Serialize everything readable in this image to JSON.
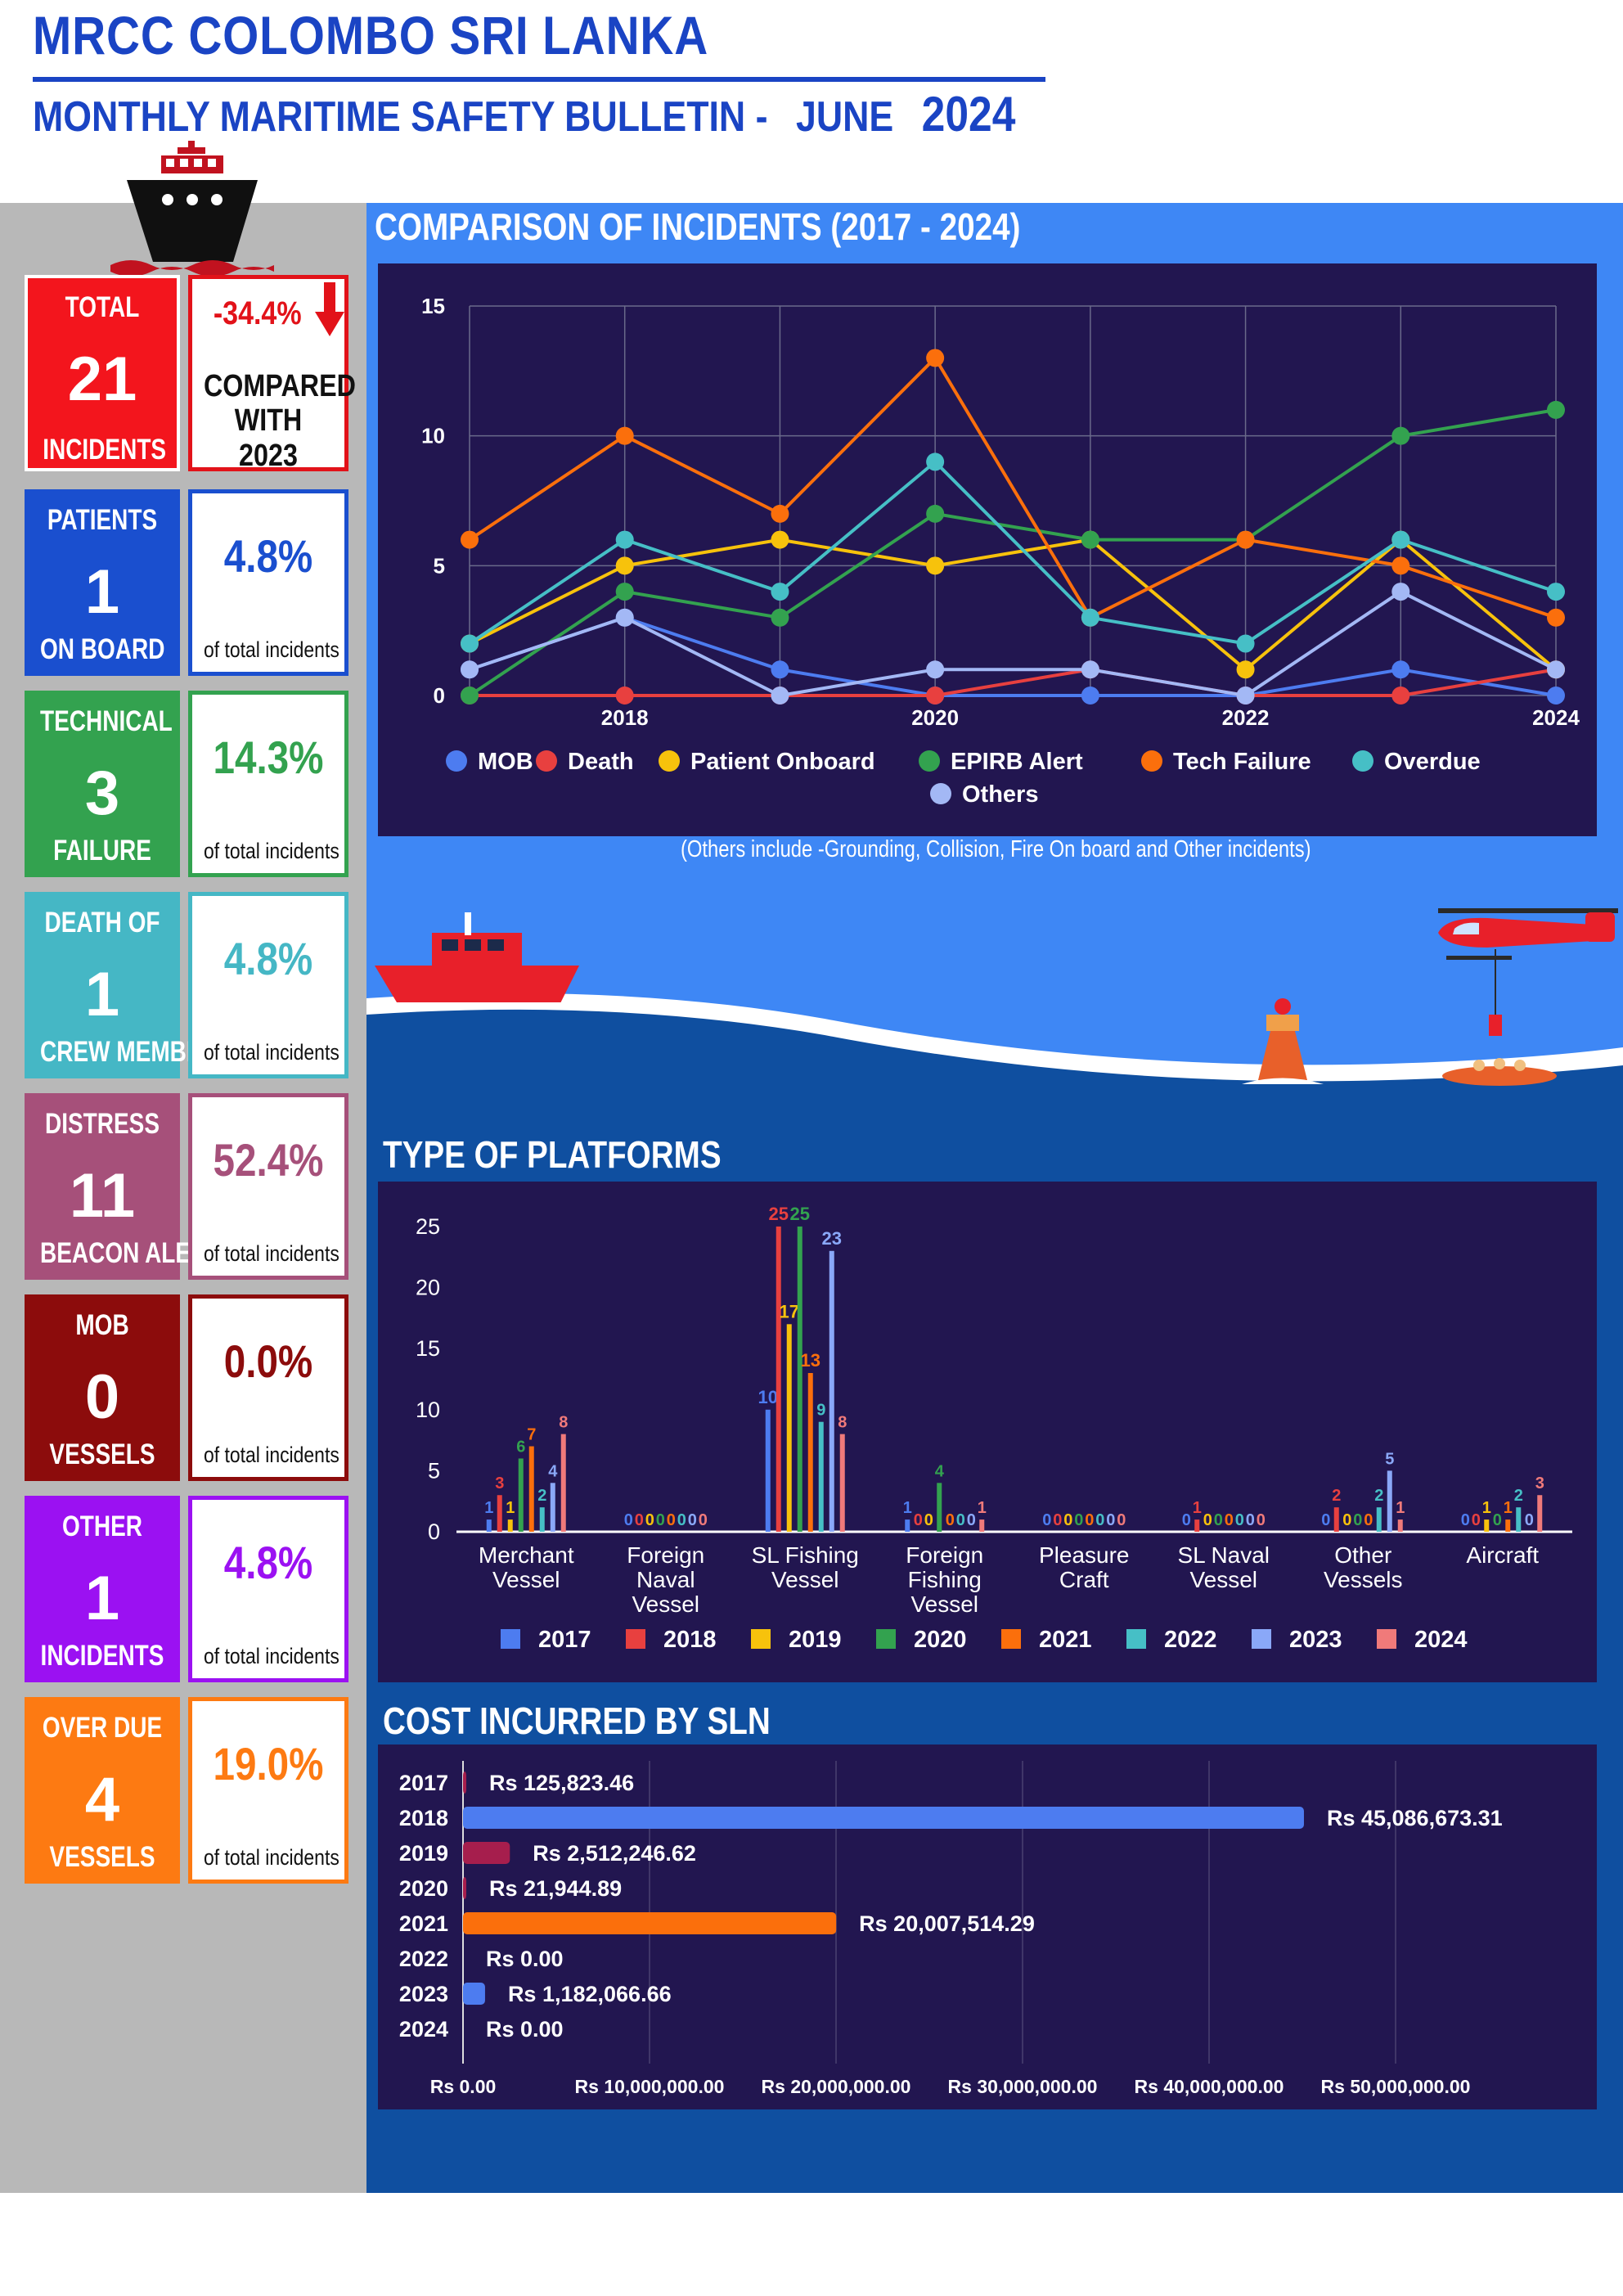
{
  "header": {
    "title": "MRCC COLOMBO SRI LANKA",
    "subtitle": "MONTHLY MARITIME SAFETY BULLETIN -",
    "month": "JUNE",
    "year": "2024"
  },
  "summary_cards": [
    {
      "top": "PATIENTS",
      "num": "1",
      "bottom": "ON BOARD",
      "pct": "4.8%",
      "pct_label": "of total incidents",
      "color": "#1a4fcf"
    },
    {
      "top": "TECHNICAL",
      "num": "3",
      "bottom": "FAILURE",
      "pct": "14.3%",
      "pct_label": "of total incidents",
      "color": "#33a24f"
    },
    {
      "top": "DEATH OF",
      "num": "1",
      "bottom": "CREW MEMBER",
      "pct": "4.8%",
      "pct_label": "of total incidents",
      "color": "#45b7c5"
    },
    {
      "top": "DISTRESS",
      "num": "11",
      "bottom": "BEACON ALERT",
      "pct": "52.4%",
      "pct_label": "of total incidents",
      "color": "#a6507a"
    },
    {
      "top": "MOB",
      "num": "0",
      "bottom": "VESSELS",
      "pct": "0.0%",
      "pct_label": "of total incidents",
      "color": "#8c0c0c"
    },
    {
      "top": "OTHER",
      "num": "1",
      "bottom": "INCIDENTS",
      "pct": "4.8%",
      "pct_label": "of total incidents",
      "color": "#9b11f2"
    },
    {
      "top": "OVER DUE",
      "num": "4",
      "bottom": "VESSELS",
      "pct": "19.0%",
      "pct_label": "of total incidents",
      "color": "#fd7a12"
    }
  ],
  "total_card": {
    "top": "TOTAL",
    "num": "21",
    "bottom": "INCIDENTS",
    "change": "-34.4%",
    "compare1": "COMPARED",
    "compare2": "WITH 2023",
    "color": "#f3151d"
  },
  "colors": {
    "MOB": "#4d7cf0",
    "Death": "#e8403f",
    "Patient Onboard": "#f7c20c",
    "EPIRB Alert": "#33a24f",
    "Tech Failure": "#fb6f0c",
    "Overdue": "#46bfc6",
    "Others": "#a3b8f5"
  },
  "note": "(Others include -Grounding, Collision, Fire On board and Other incidents)",
  "chart_data": [
    {
      "type": "line",
      "title": "COMPARISON OF INCIDENTS (2017 - 2024)",
      "x": [
        2017,
        2018,
        2019,
        2020,
        2021,
        2022,
        2023,
        2024
      ],
      "x_tick_labels": [
        "2018",
        "2020",
        "2022",
        "2024"
      ],
      "y_ticks": [
        "0",
        "5",
        "10",
        "15"
      ],
      "ylim": [
        0,
        15
      ],
      "legend": "bottom",
      "series": [
        {
          "name": "MOB",
          "values": [
            1,
            3,
            1,
            0,
            0,
            0,
            1,
            0
          ]
        },
        {
          "name": "Death",
          "values": [
            0,
            0,
            0,
            0,
            1,
            0,
            0,
            1
          ]
        },
        {
          "name": "Patient Onboard",
          "values": [
            2,
            5,
            6,
            5,
            6,
            1,
            6,
            1
          ]
        },
        {
          "name": "EPIRB Alert",
          "values": [
            0,
            4,
            3,
            7,
            6,
            6,
            10,
            11
          ]
        },
        {
          "name": "Tech Failure",
          "values": [
            6,
            10,
            7,
            13,
            3,
            6,
            5,
            3
          ]
        },
        {
          "name": "Overdue",
          "values": [
            2,
            6,
            4,
            9,
            3,
            2,
            6,
            4
          ]
        },
        {
          "name": "Others",
          "values": [
            1,
            3,
            0,
            1,
            1,
            0,
            4,
            1
          ]
        }
      ]
    },
    {
      "type": "bar",
      "title": "TYPE OF PLATFORMS",
      "categories": [
        [
          "Merchant",
          "Vessel"
        ],
        [
          "Foreign",
          "Naval",
          "Vessel"
        ],
        [
          "SL Fishing",
          "Vessel"
        ],
        [
          "Foreign",
          "Fishing",
          "Vessel"
        ],
        [
          "Pleasure",
          "Craft"
        ],
        [
          "SL Naval",
          "Vessel"
        ],
        [
          "Other",
          "Vessels"
        ],
        [
          "Aircraft"
        ]
      ],
      "y_ticks": [
        "0",
        "5",
        "10",
        "15",
        "20",
        "25"
      ],
      "ylim": [
        0,
        26
      ],
      "legend": "bottom",
      "series": [
        {
          "name": "2017",
          "color": "#4d7cf0",
          "values": [
            1,
            0,
            10,
            1,
            0,
            0,
            0,
            0
          ]
        },
        {
          "name": "2018",
          "color": "#e8403f",
          "values": [
            3,
            0,
            25,
            0,
            0,
            1,
            2,
            0
          ]
        },
        {
          "name": "2019",
          "color": "#f7c20c",
          "values": [
            1,
            0,
            17,
            0,
            0,
            0,
            0,
            1
          ]
        },
        {
          "name": "2020",
          "color": "#33a24f",
          "values": [
            6,
            0,
            25,
            4,
            0,
            0,
            0,
            0
          ]
        },
        {
          "name": "2021",
          "color": "#fb6f0c",
          "values": [
            7,
            0,
            13,
            0,
            0,
            0,
            0,
            1
          ]
        },
        {
          "name": "2022",
          "color": "#46bfc6",
          "values": [
            2,
            0,
            9,
            0,
            0,
            0,
            2,
            2
          ]
        },
        {
          "name": "2023",
          "color": "#8aa8f8",
          "values": [
            4,
            0,
            23,
            0,
            0,
            0,
            5,
            0
          ]
        },
        {
          "name": "2024",
          "color": "#f07a7a",
          "values": [
            8,
            0,
            8,
            1,
            0,
            0,
            1,
            3
          ]
        }
      ]
    },
    {
      "type": "bar",
      "orientation": "horizontal",
      "title": "COST INCURRED BY SLN",
      "categories": [
        "2017",
        "2018",
        "2019",
        "2020",
        "2021",
        "2022",
        "2023",
        "2024"
      ],
      "values": [
        125823.46,
        45086673.31,
        2512246.62,
        21944.89,
        20007514.29,
        0,
        1182066.66,
        0
      ],
      "value_labels": [
        "Rs 125,823.46",
        "Rs 45,086,673.31",
        "Rs 2,512,246.62",
        "Rs 21,944.89",
        "Rs 20,007,514.29",
        "Rs 0.00",
        "Rs 1,182,066.66",
        "Rs 0.00"
      ],
      "bar_colors": [
        "#a61e4d",
        "#4d7cf0",
        "#a61e4d",
        "#a61e4d",
        "#fb6f0c",
        "#a61e4d",
        "#4d7cf0",
        "#a61e4d"
      ],
      "x_ticks": [
        "Rs 0.00",
        "Rs 10,000,000.00",
        "Rs 20,000,000.00",
        "Rs 30,000,000.00",
        "Rs 40,000,000.00",
        "Rs 50,000,000.00"
      ],
      "xlim": [
        0,
        50000000
      ]
    }
  ]
}
